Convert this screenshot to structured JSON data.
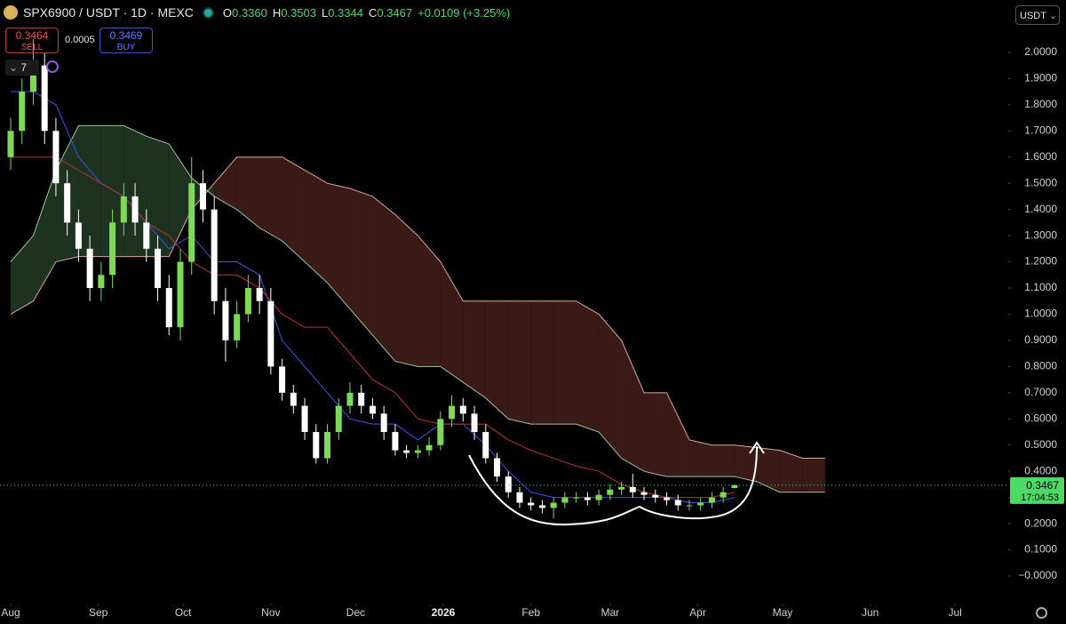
{
  "chart_data": {
    "type": "candlestick",
    "header": {
      "symbol": "SPX6900 / USDT · 1D · MEXC",
      "ohlc": [
        {
          "key": "O",
          "value": "0.3360"
        },
        {
          "key": "H",
          "value": "0.3503"
        },
        {
          "key": "L",
          "value": "0.3344"
        },
        {
          "key": "C",
          "value": "0.3467"
        }
      ],
      "change": "+0.0109 (+3.25%)",
      "sell_price": "0.3464",
      "sell": "SELL",
      "spread": "0.0005",
      "buy_price": "0.3469",
      "buy": "BUY",
      "indicators_count": "7",
      "currency": "USDT"
    },
    "x": [
      0,
      4,
      8,
      12,
      16,
      20,
      24,
      28,
      32,
      36,
      40,
      44,
      48,
      52,
      56,
      60,
      64,
      68,
      72,
      76,
      80,
      84,
      88,
      92,
      96,
      100,
      104,
      108,
      112,
      116,
      120,
      124,
      128,
      132,
      136,
      140,
      144,
      148,
      152,
      156,
      160,
      164,
      168,
      172,
      176,
      180,
      184,
      188,
      192,
      196,
      200,
      204,
      208,
      212,
      216,
      220,
      224,
      228,
      232,
      236,
      240,
      244,
      248,
      252,
      256
    ],
    "open": [
      1.6,
      1.7,
      1.85,
      1.95,
      1.7,
      1.5,
      1.35,
      1.25,
      1.1,
      1.15,
      1.35,
      1.45,
      1.35,
      1.25,
      1.1,
      0.95,
      1.2,
      1.5,
      1.4,
      1.05,
      0.9,
      1.0,
      1.1,
      1.05,
      0.8,
      0.7,
      0.65,
      0.55,
      0.45,
      0.55,
      0.65,
      0.7,
      0.65,
      0.62,
      0.55,
      0.48,
      0.47,
      0.48,
      0.5,
      0.6,
      0.65,
      0.62,
      0.55,
      0.45,
      0.38,
      0.32,
      0.28,
      0.27,
      0.26,
      0.28,
      0.3,
      0.3,
      0.29,
      0.31,
      0.33,
      0.34,
      0.32,
      0.31,
      0.3,
      0.29,
      0.27,
      0.27,
      0.28,
      0.3,
      0.336
    ],
    "high": [
      1.75,
      1.9,
      2.05,
      2.0,
      1.75,
      1.55,
      1.4,
      1.3,
      1.2,
      1.4,
      1.5,
      1.5,
      1.4,
      1.3,
      1.15,
      1.25,
      1.6,
      1.55,
      1.45,
      1.1,
      1.05,
      1.15,
      1.15,
      1.1,
      0.83,
      0.73,
      0.68,
      0.58,
      0.58,
      0.68,
      0.74,
      0.73,
      0.68,
      0.65,
      0.58,
      0.5,
      0.5,
      0.53,
      0.63,
      0.69,
      0.68,
      0.65,
      0.58,
      0.47,
      0.4,
      0.34,
      0.3,
      0.29,
      0.3,
      0.32,
      0.32,
      0.32,
      0.33,
      0.35,
      0.36,
      0.39,
      0.34,
      0.33,
      0.32,
      0.31,
      0.29,
      0.3,
      0.32,
      0.34,
      0.3503
    ],
    "low": [
      1.55,
      1.65,
      1.8,
      1.65,
      1.45,
      1.3,
      1.2,
      1.05,
      1.05,
      1.1,
      1.3,
      1.3,
      1.2,
      1.05,
      0.92,
      0.9,
      1.15,
      1.35,
      1.0,
      0.82,
      0.87,
      0.97,
      1.0,
      0.77,
      0.67,
      0.62,
      0.52,
      0.43,
      0.43,
      0.52,
      0.62,
      0.62,
      0.6,
      0.52,
      0.46,
      0.45,
      0.45,
      0.46,
      0.48,
      0.57,
      0.59,
      0.52,
      0.43,
      0.36,
      0.3,
      0.26,
      0.25,
      0.24,
      0.22,
      0.26,
      0.28,
      0.27,
      0.27,
      0.29,
      0.31,
      0.3,
      0.29,
      0.28,
      0.27,
      0.25,
      0.25,
      0.25,
      0.26,
      0.28,
      0.3344
    ],
    "close": [
      1.7,
      1.85,
      1.95,
      1.7,
      1.5,
      1.35,
      1.25,
      1.1,
      1.15,
      1.35,
      1.45,
      1.35,
      1.25,
      1.1,
      0.95,
      1.2,
      1.5,
      1.4,
      1.05,
      0.9,
      1.0,
      1.1,
      1.05,
      0.8,
      0.7,
      0.65,
      0.55,
      0.45,
      0.55,
      0.65,
      0.7,
      0.65,
      0.62,
      0.55,
      0.48,
      0.47,
      0.48,
      0.5,
      0.6,
      0.65,
      0.62,
      0.55,
      0.45,
      0.38,
      0.32,
      0.28,
      0.27,
      0.26,
      0.28,
      0.3,
      0.3,
      0.29,
      0.31,
      0.33,
      0.34,
      0.32,
      0.31,
      0.3,
      0.29,
      0.27,
      0.27,
      0.28,
      0.3,
      0.32,
      0.3467
    ],
    "up_color": "#7ed957",
    "down_color": "#ffffff",
    "lines": [
      {
        "color": "#3a55d9",
        "x": [
          0,
          8,
          16,
          24,
          32,
          40,
          48,
          56,
          64,
          72,
          80,
          88,
          96,
          104,
          112,
          120,
          128,
          136,
          144,
          152,
          160,
          168,
          176,
          184,
          192,
          200,
          208,
          216,
          224,
          232,
          240,
          248,
          256
        ],
        "values": [
          1.85,
          1.85,
          1.8,
          1.6,
          1.5,
          1.45,
          1.35,
          1.25,
          1.3,
          1.2,
          1.2,
          1.15,
          0.9,
          0.8,
          0.7,
          0.6,
          0.58,
          0.58,
          0.52,
          0.58,
          0.58,
          0.5,
          0.4,
          0.32,
          0.3,
          0.3,
          0.3,
          0.3,
          0.3,
          0.3,
          0.28,
          0.28,
          0.3
        ]
      },
      {
        "color": "#b8342a",
        "x": [
          0,
          8,
          16,
          24,
          32,
          40,
          48,
          56,
          64,
          72,
          80,
          88,
          96,
          104,
          112,
          120,
          128,
          136,
          144,
          152,
          160,
          168,
          176,
          184,
          192,
          200,
          208,
          216,
          224,
          232,
          240,
          248,
          256
        ],
        "values": [
          1.6,
          1.6,
          1.6,
          1.55,
          1.5,
          1.45,
          1.35,
          1.3,
          1.2,
          1.15,
          1.15,
          1.1,
          1.0,
          0.95,
          0.95,
          0.85,
          0.75,
          0.7,
          0.6,
          0.58,
          0.58,
          0.58,
          0.52,
          0.48,
          0.45,
          0.42,
          0.4,
          0.35,
          0.32,
          0.3,
          0.3,
          0.3,
          0.32
        ]
      }
    ],
    "cloud": {
      "x": [
        0,
        8,
        16,
        24,
        32,
        40,
        48,
        56,
        64,
        72,
        80,
        88,
        96,
        104,
        112,
        120,
        128,
        136,
        144,
        152,
        160,
        168,
        176,
        184,
        192,
        200,
        208,
        216,
        224,
        232,
        240,
        248,
        256,
        264,
        272,
        280,
        288
      ],
      "span_a": [
        1.2,
        1.3,
        1.55,
        1.72,
        1.72,
        1.72,
        1.68,
        1.65,
        1.52,
        1.45,
        1.4,
        1.33,
        1.28,
        1.2,
        1.12,
        1.02,
        0.92,
        0.82,
        0.8,
        0.8,
        0.74,
        0.68,
        0.6,
        0.58,
        0.58,
        0.58,
        0.55,
        0.45,
        0.4,
        0.38,
        0.38,
        0.38,
        0.38,
        0.36,
        0.32,
        0.32,
        0.32
      ],
      "span_b": [
        1.0,
        1.05,
        1.2,
        1.22,
        1.22,
        1.22,
        1.22,
        1.22,
        1.4,
        1.5,
        1.6,
        1.6,
        1.6,
        1.55,
        1.5,
        1.48,
        1.45,
        1.38,
        1.3,
        1.2,
        1.05,
        1.05,
        1.05,
        1.05,
        1.05,
        1.05,
        1.0,
        0.9,
        0.7,
        0.7,
        0.52,
        0.5,
        0.5,
        0.49,
        0.48,
        0.45,
        0.45
      ],
      "up_fill": "#1d3320",
      "down_fill": "#3a1a16",
      "up_edge": "#9fc497",
      "down_edge": "#e0a896"
    },
    "last_price": {
      "value": 0.3467,
      "label": "0.3467"
    },
    "countdown": "17:04:53",
    "price_color": "#4cd964",
    "xlim": [
      -3.77,
      352.8
    ],
    "xticks": [
      {
        "value": 0,
        "label": "Aug"
      },
      {
        "value": 31,
        "label": "Sep"
      },
      {
        "value": 61,
        "label": "Oct"
      },
      {
        "value": 92,
        "label": "Nov"
      },
      {
        "value": 122,
        "label": "Dec"
      },
      {
        "value": 153,
        "label": "2026"
      },
      {
        "value": 184,
        "label": "Feb"
      },
      {
        "value": 212,
        "label": "Mar"
      },
      {
        "value": 243,
        "label": "Apr"
      },
      {
        "value": 273,
        "label": "May"
      },
      {
        "value": 304,
        "label": "Jun"
      },
      {
        "value": 334,
        "label": "Jul"
      }
    ],
    "ylim": [
      -0.1,
      2.2
    ],
    "yticks": [
      {
        "value": 2,
        "label": "2.0000"
      },
      {
        "value": 1.9,
        "label": "1.9000"
      },
      {
        "value": 1.8,
        "label": "1.8000"
      },
      {
        "value": 1.7,
        "label": "1.7000"
      },
      {
        "value": 1.6,
        "label": "1.6000"
      },
      {
        "value": 1.5,
        "label": "1.5000"
      },
      {
        "value": 1.4,
        "label": "1.4000"
      },
      {
        "value": 1.3,
        "label": "1.3000"
      },
      {
        "value": 1.2,
        "label": "1.2000"
      },
      {
        "value": 1.1,
        "label": "1.1000"
      },
      {
        "value": 1,
        "label": "1.0000"
      },
      {
        "value": 0.9,
        "label": "0.9000"
      },
      {
        "value": 0.8,
        "label": "0.8000"
      },
      {
        "value": 0.7,
        "label": "0.7000"
      },
      {
        "value": 0.6,
        "label": "0.6000"
      },
      {
        "value": 0.5,
        "label": "0.5000"
      },
      {
        "value": 0.4,
        "label": "0.4000"
      },
      {
        "value": 0.3,
        "label": "0.3000"
      },
      {
        "value": 0.2,
        "label": "0.2000"
      },
      {
        "value": 0.1,
        "label": "0.1000"
      },
      {
        "value": 0,
        "label": "−0.0000"
      }
    ]
  }
}
